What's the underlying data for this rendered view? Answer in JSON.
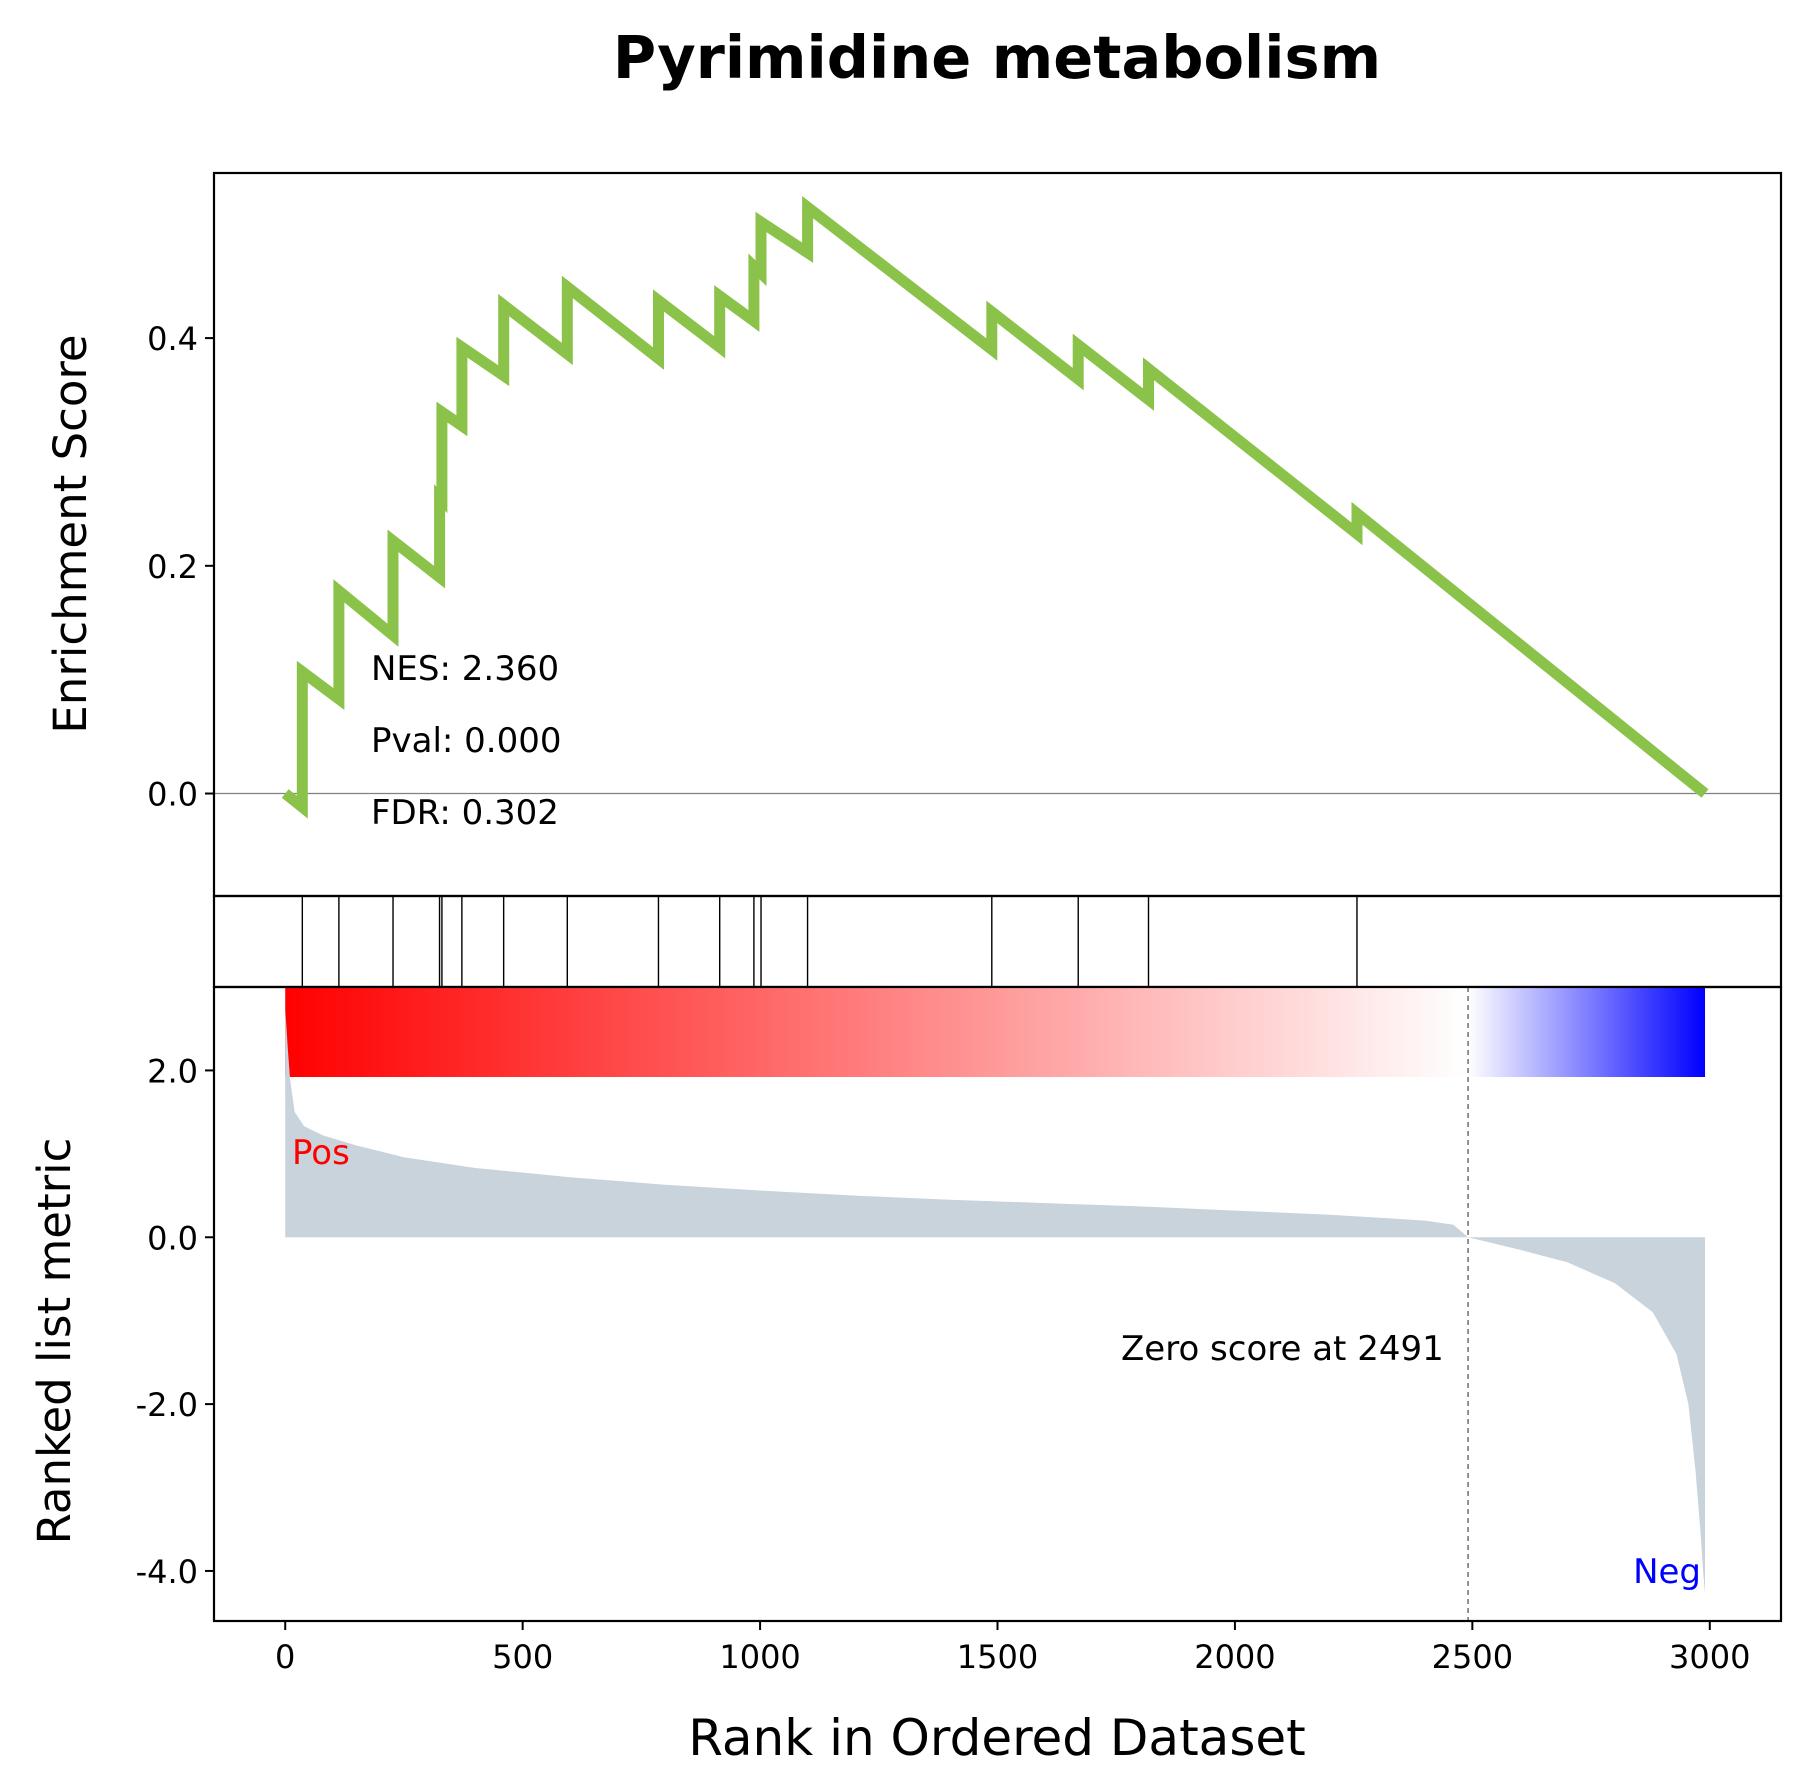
{
  "chart_data": {
    "type": "line",
    "title": "Pyrimidine metabolism",
    "xlabel": "Rank in Ordered Dataset",
    "xlim": [
      -150,
      3150
    ],
    "x_ticks": [
      0,
      500,
      1000,
      1500,
      2000,
      2500,
      3000
    ],
    "x_tick_labels": [
      "0",
      "500",
      "1000",
      "1500",
      "2000",
      "2500",
      "3000"
    ],
    "enrichment": {
      "ylabel": "Enrichment Score",
      "ylim": [
        -0.09,
        0.545
      ],
      "y_ticks": [
        0.0,
        0.2,
        0.4
      ],
      "y_tick_labels": [
        "0.0",
        "0.2",
        "0.4"
      ],
      "line_color": "#8bc34a",
      "series": [
        {
          "points": [
            [
              0,
              0.0
            ],
            [
              36,
              -0.012
            ],
            [
              36,
              0.107
            ],
            [
              113,
              0.083
            ],
            [
              113,
              0.178
            ],
            [
              227,
              0.139
            ],
            [
              227,
              0.222
            ],
            [
              325,
              0.19
            ],
            [
              325,
              0.26
            ],
            [
              330,
              0.258
            ],
            [
              330,
              0.335
            ],
            [
              372,
              0.323
            ],
            [
              372,
              0.392
            ],
            [
              460,
              0.367
            ],
            [
              460,
              0.429
            ],
            [
              594,
              0.386
            ],
            [
              594,
              0.445
            ],
            [
              786,
              0.382
            ],
            [
              786,
              0.433
            ],
            [
              915,
              0.392
            ],
            [
              915,
              0.437
            ],
            [
              987,
              0.415
            ],
            [
              987,
              0.463
            ],
            [
              1002,
              0.457
            ],
            [
              1002,
              0.502
            ],
            [
              1100,
              0.475
            ],
            [
              1100,
              0.515
            ],
            [
              1488,
              0.39
            ],
            [
              1488,
              0.423
            ],
            [
              1670,
              0.364
            ],
            [
              1670,
              0.394
            ],
            [
              1818,
              0.346
            ],
            [
              1818,
              0.373
            ],
            [
              2257,
              0.228
            ],
            [
              2257,
              0.246
            ],
            [
              2990,
              0.0
            ]
          ]
        }
      ],
      "annotations": [
        "NES: 2.360",
        "Pval: 0.000",
        "FDR: 0.302"
      ]
    },
    "hits": [
      36,
      113,
      227,
      325,
      330,
      372,
      460,
      594,
      786,
      915,
      987,
      1002,
      1100,
      1488,
      1670,
      1818,
      2257
    ],
    "ranked_metric": {
      "ylabel": "Ranked list metric",
      "ylim": [
        -4.6,
        3.0
      ],
      "y_ticks": [
        2.0,
        0.0,
        -2.0,
        -4.0
      ],
      "y_tick_labels": [
        "2.0",
        "0.0",
        "-2.0",
        "-4.0"
      ],
      "fill_color": "#c8d3dc",
      "series": [
        {
          "points": [
            [
              0,
              2.75
            ],
            [
              5,
              2.3
            ],
            [
              10,
              1.9
            ],
            [
              20,
              1.5
            ],
            [
              40,
              1.33
            ],
            [
              80,
              1.22
            ],
            [
              150,
              1.1
            ],
            [
              250,
              0.96
            ],
            [
              400,
              0.83
            ],
            [
              600,
              0.72
            ],
            [
              800,
              0.63
            ],
            [
              1000,
              0.56
            ],
            [
              1200,
              0.5
            ],
            [
              1400,
              0.45
            ],
            [
              1600,
              0.41
            ],
            [
              1800,
              0.37
            ],
            [
              2000,
              0.32
            ],
            [
              2200,
              0.27
            ],
            [
              2400,
              0.2
            ],
            [
              2460,
              0.15
            ],
            [
              2491,
              0.0
            ],
            [
              2600,
              -0.15
            ],
            [
              2700,
              -0.3
            ],
            [
              2800,
              -0.55
            ],
            [
              2880,
              -0.9
            ],
            [
              2930,
              -1.4
            ],
            [
              2955,
              -2.0
            ],
            [
              2970,
              -2.8
            ],
            [
              2980,
              -3.5
            ],
            [
              2986,
              -4.0
            ],
            [
              2990,
              -4.28
            ]
          ]
        }
      ],
      "zero_score": 2491,
      "zero_label": "Zero score at 2491",
      "pos_label": "Pos",
      "neg_label": "Neg",
      "pos_color": "#ff0000",
      "neg_color": "#0000ff"
    },
    "colorbar": {
      "cmap": "bwr",
      "range": [
        0,
        2990
      ],
      "center": 2491
    }
  }
}
